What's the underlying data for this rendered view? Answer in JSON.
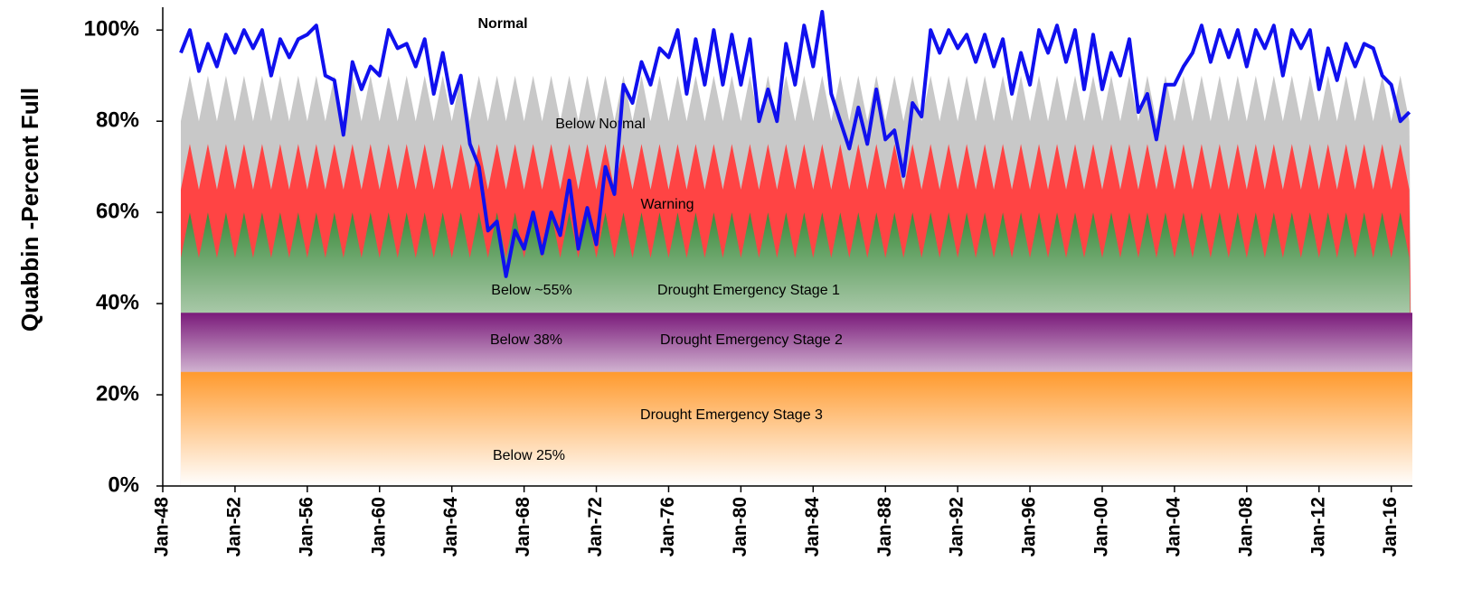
{
  "chart_data": {
    "type": "line",
    "ylabel": "Quabbin -Percent Full",
    "ylim": [
      0,
      105
    ],
    "yticks": [
      {
        "value": 0,
        "label": "0%"
      },
      {
        "value": 20,
        "label": "20%"
      },
      {
        "value": 40,
        "label": "40%"
      },
      {
        "value": 60,
        "label": "60%"
      },
      {
        "value": 80,
        "label": "80%"
      },
      {
        "value": 100,
        "label": "100%"
      }
    ],
    "xlim": [
      "Jan-48",
      "Mar-17"
    ],
    "xticks": [
      "Jan-48",
      "Jan-52",
      "Jan-56",
      "Jan-60",
      "Jan-64",
      "Jan-68",
      "Jan-72",
      "Jan-76",
      "Jan-80",
      "Jan-84",
      "Jan-88",
      "Jan-92",
      "Jan-96",
      "Jan-00",
      "Jan-04",
      "Jan-08",
      "Jan-12",
      "Jan-16"
    ],
    "bands": [
      {
        "top": [
          80,
          90
        ],
        "colors": [
          "#c8c8c8",
          "#c8c8c8"
        ]
      },
      {
        "top": [
          65,
          75
        ],
        "colors": [
          "#ff4444",
          "#ff4444"
        ]
      },
      {
        "top": [
          50,
          60
        ],
        "colors": [
          "#3a8a3a",
          "#a8c8a8"
        ]
      },
      {
        "top": [
          38
        ],
        "colors": [
          "#7a1a7a",
          "#d0b2d0"
        ]
      },
      {
        "top": [
          25
        ],
        "colors": [
          "#ff9a2e",
          "#ffffff"
        ]
      }
    ],
    "annotations": [
      "Normal",
      "Below Normal",
      "Warning",
      "Below ~55%",
      "Drought Emergency Stage 1",
      "Below 38%",
      "Drought Emergency Stage 2",
      "Drought Emergency Stage 3",
      "Below 25%"
    ],
    "series": [
      {
        "color": "#1010ee",
        "x": [
          "Jan-49",
          "Jul-49",
          "Jan-50",
          "Jul-50",
          "Jan-51",
          "Jul-51",
          "Jan-52",
          "Jul-52",
          "Jan-53",
          "Jul-53",
          "Jan-54",
          "Jul-54",
          "Jan-55",
          "Jul-55",
          "Jan-56",
          "Jul-56",
          "Jan-57",
          "Jul-57",
          "Jan-58",
          "Jul-58",
          "Jan-59",
          "Jul-59",
          "Jan-60",
          "Jul-60",
          "Jan-61",
          "Jul-61",
          "Jan-62",
          "Jul-62",
          "Jan-63",
          "Jul-63",
          "Jan-64",
          "Jul-64",
          "Jan-65",
          "Jul-65",
          "Jan-66",
          "Jul-66",
          "Jan-67",
          "Jul-67",
          "Jan-68",
          "Jul-68",
          "Jan-69",
          "Jul-69",
          "Jan-70",
          "Jul-70",
          "Jan-71",
          "Jul-71",
          "Jan-72",
          "Jul-72",
          "Jan-73",
          "Jul-73",
          "Jan-74",
          "Jul-74",
          "Jan-75",
          "Jul-75",
          "Jan-76",
          "Jul-76",
          "Jan-77",
          "Jul-77",
          "Jan-78",
          "Jul-78",
          "Jan-79",
          "Jul-79",
          "Jan-80",
          "Jul-80",
          "Jan-81",
          "Jul-81",
          "Jan-82",
          "Jul-82",
          "Jan-83",
          "Jul-83",
          "Jan-84",
          "Jul-84",
          "Jan-85",
          "Jul-85",
          "Jan-86",
          "Jul-86",
          "Jan-87",
          "Jul-87",
          "Jan-88",
          "Jul-88",
          "Jan-89",
          "Jul-89",
          "Jan-90",
          "Jul-90",
          "Jan-91",
          "Jul-91",
          "Jan-92",
          "Jul-92",
          "Jan-93",
          "Jul-93",
          "Jan-94",
          "Jul-94",
          "Jan-95",
          "Jul-95",
          "Jan-96",
          "Jul-96",
          "Jan-97",
          "Jul-97",
          "Jan-98",
          "Jul-98",
          "Jan-99",
          "Jul-99",
          "Jan-00",
          "Jul-00",
          "Jan-01",
          "Jul-01",
          "Jan-02",
          "Jul-02",
          "Jan-03",
          "Jul-03",
          "Jan-04",
          "Jul-04",
          "Jan-05",
          "Jul-05",
          "Jan-06",
          "Jul-06",
          "Jan-07",
          "Jul-07",
          "Jan-08",
          "Jul-08",
          "Jan-09",
          "Jul-09",
          "Jan-10",
          "Jul-10",
          "Jan-11",
          "Jul-11",
          "Jan-12",
          "Jul-12",
          "Jan-13",
          "Jul-13",
          "Jan-14",
          "Jul-14",
          "Jan-15",
          "Jul-15",
          "Jan-16",
          "Jul-16",
          "Jan-17"
        ],
        "values": [
          95,
          100,
          91,
          97,
          92,
          99,
          95,
          100,
          96,
          100,
          90,
          98,
          94,
          98,
          99,
          101,
          90,
          89,
          77,
          93,
          87,
          92,
          90,
          100,
          96,
          97,
          92,
          98,
          86,
          95,
          84,
          90,
          75,
          70,
          56,
          58,
          46,
          56,
          52,
          60,
          51,
          60,
          55,
          67,
          52,
          61,
          53,
          70,
          64,
          88,
          84,
          93,
          88,
          96,
          94,
          100,
          86,
          98,
          88,
          100,
          88,
          99,
          88,
          98,
          80,
          87,
          80,
          97,
          88,
          101,
          92,
          104,
          86,
          80,
          74,
          83,
          75,
          87,
          76,
          78,
          68,
          84,
          81,
          100,
          95,
          100,
          96,
          99,
          93,
          99,
          92,
          98,
          86,
          95,
          88,
          100,
          95,
          101,
          93,
          100,
          87,
          99,
          87,
          95,
          90,
          98,
          82,
          86,
          76,
          88,
          88,
          92,
          95,
          101,
          93,
          100,
          94,
          100,
          92,
          100,
          96,
          101,
          90,
          100,
          96,
          100,
          87,
          96,
          89,
          97,
          92,
          97,
          96,
          90,
          88,
          80,
          82
        ]
      }
    ]
  }
}
